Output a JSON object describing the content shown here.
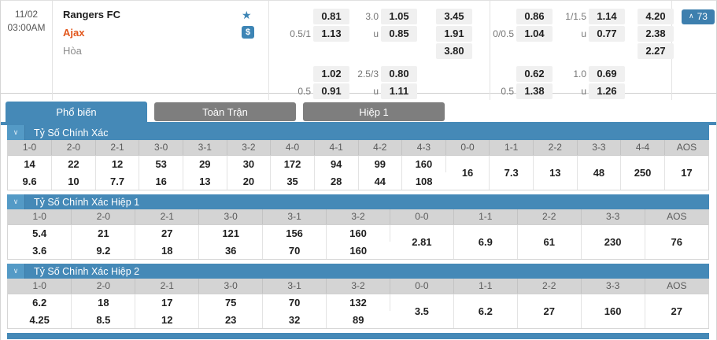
{
  "match": {
    "date": "11/02",
    "time": "03:00AM",
    "home_team": "Rangers FC",
    "away_team": "Ajax",
    "draw_label": "Hòa",
    "markets_count": "73",
    "full_time": {
      "handicap": [
        {
          "line": "0.5/1",
          "home": "0.81",
          "away": "1.13"
        },
        {
          "line": "0.5",
          "home": "1.02",
          "away": "0.91"
        }
      ],
      "over_under": [
        {
          "line": "3.0",
          "over": "1.05",
          "under_label": "u",
          "under": "0.85"
        },
        {
          "line": "2.5/3",
          "over": "0.80",
          "under_label": "u",
          "under": "1.11"
        }
      ],
      "one_x_two": {
        "home": "3.45",
        "away": "1.91",
        "draw": "3.80"
      }
    },
    "first_half": {
      "handicap": [
        {
          "line": "0/0.5",
          "home": "0.86",
          "away": "1.04"
        },
        {
          "line": "0.5",
          "home": "0.62",
          "away": "1.38"
        }
      ],
      "over_under": [
        {
          "line": "1/1.5",
          "over": "1.14",
          "under_label": "u",
          "under": "0.77"
        },
        {
          "line": "1.0",
          "over": "0.69",
          "under_label": "u",
          "under": "1.26"
        }
      ],
      "one_x_two": {
        "home": "4.20",
        "away": "2.38",
        "draw": "2.27"
      }
    }
  },
  "icons": {
    "star": "★",
    "dollar": "$",
    "chevron_up": "∧",
    "chevron_down": "∨"
  },
  "tabs": [
    {
      "label": "Phổ biến",
      "active": true
    },
    {
      "label": "Toàn Trận",
      "active": false
    },
    {
      "label": "Hiệp 1",
      "active": false
    }
  ],
  "sections": [
    {
      "title": "Tỷ Số Chính Xác",
      "columns": [
        "1-0",
        "2-0",
        "2-1",
        "3-0",
        "3-1",
        "3-2",
        "4-0",
        "4-1",
        "4-2",
        "4-3",
        "0-0",
        "1-1",
        "2-2",
        "3-3",
        "4-4",
        "AOS"
      ],
      "home_row": [
        "14",
        "22",
        "12",
        "53",
        "29",
        "30",
        "172",
        "94",
        "99",
        "160"
      ],
      "away_row": [
        "9.6",
        "10",
        "7.7",
        "16",
        "13",
        "20",
        "35",
        "28",
        "44",
        "108"
      ],
      "draw_row": [
        "16",
        "7.3",
        "13",
        "48",
        "250",
        "17"
      ]
    },
    {
      "title": "Tỷ Số Chính Xác Hiệp 1",
      "columns": [
        "1-0",
        "2-0",
        "2-1",
        "3-0",
        "3-1",
        "3-2",
        "0-0",
        "1-1",
        "2-2",
        "3-3",
        "AOS"
      ],
      "home_row": [
        "5.4",
        "21",
        "27",
        "121",
        "156",
        "160"
      ],
      "away_row": [
        "3.6",
        "9.2",
        "18",
        "36",
        "70",
        "160"
      ],
      "draw_row": [
        "2.81",
        "6.9",
        "61",
        "230",
        "76"
      ]
    },
    {
      "title": "Tỷ Số Chính Xác Hiệp 2",
      "columns": [
        "1-0",
        "2-0",
        "2-1",
        "3-0",
        "3-1",
        "3-2",
        "0-0",
        "1-1",
        "2-2",
        "3-3",
        "AOS"
      ],
      "home_row": [
        "6.2",
        "18",
        "17",
        "75",
        "70",
        "132"
      ],
      "away_row": [
        "4.25",
        "8.5",
        "12",
        "23",
        "32",
        "89"
      ],
      "draw_row": [
        "3.5",
        "6.2",
        "27",
        "160",
        "27"
      ]
    }
  ],
  "colors": {
    "accent_blue": "#4589b7",
    "tab_inactive_gray": "#7e7e7e",
    "away_team_orange": "#e2561b",
    "odds_pill_bg": "#f0f0f0"
  }
}
